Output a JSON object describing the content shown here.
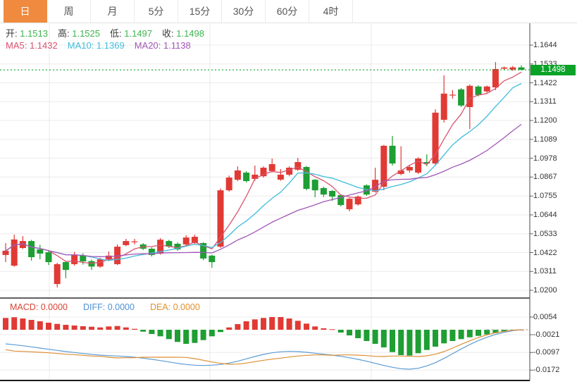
{
  "toolbar": {
    "tabs": [
      {
        "name": "tab-day",
        "label": "日",
        "active": true
      },
      {
        "name": "tab-week",
        "label": "周",
        "active": false
      },
      {
        "name": "tab-month",
        "label": "月",
        "active": false
      },
      {
        "name": "tab-5min",
        "label": "5分",
        "active": false
      },
      {
        "name": "tab-15min",
        "label": "15分",
        "active": false
      },
      {
        "name": "tab-30min",
        "label": "30分",
        "active": false
      },
      {
        "name": "tab-60min",
        "label": "60分",
        "active": false
      },
      {
        "name": "tab-4hour",
        "label": "4时",
        "active": false
      }
    ]
  },
  "legend": {
    "ohlc": [
      {
        "name": "ohlc-open",
        "label": "开:",
        "value": "1.1513"
      },
      {
        "name": "ohlc-high",
        "label": "高:",
        "value": "1.1525"
      },
      {
        "name": "ohlc-low",
        "label": "低:",
        "value": "1.1497"
      },
      {
        "name": "ohlc-close",
        "label": "收:",
        "value": "1.1498"
      }
    ],
    "ma": [
      {
        "name": "ma5-legend",
        "label": "MA5:",
        "value": "1.1432",
        "color": "#d9536f"
      },
      {
        "name": "ma10-legend",
        "label": "MA10:",
        "value": "1.1369",
        "color": "#3fbcdc"
      },
      {
        "name": "ma20-legend",
        "label": "MA20:",
        "value": "1.1138",
        "color": "#a257b8"
      }
    ]
  },
  "price_axis": {
    "tick_labels": [
      "1.1644",
      "1.1533",
      "1.1422",
      "1.1311",
      "1.1200",
      "1.1089",
      "1.0978",
      "1.0867",
      "1.0755",
      "1.0644",
      "1.0533",
      "1.0422",
      "1.0311",
      "1.0200"
    ],
    "current_price": "1.1498"
  },
  "macd_panel": {
    "legend": [
      {
        "name": "macd-value",
        "label": "MACD:",
        "value": "0.0000",
        "color": "#d94436"
      },
      {
        "name": "diff-value",
        "label": "DIFF:",
        "value": "0.0000",
        "color": "#4f93d6"
      },
      {
        "name": "dea-value",
        "label": "DEA:",
        "value": "0.0000",
        "color": "#e2902e"
      }
    ],
    "tick_labels": [
      "0.0054",
      "-0.0021",
      "-0.0097",
      "-0.0172"
    ]
  },
  "colors": {
    "up": "#e13a34",
    "down": "#1e9e33",
    "badge": "#0ba228",
    "dotted_price_line": "#0ca32e",
    "ma5": "#d9536f",
    "ma10": "#3fbcdc",
    "ma20": "#a257b8",
    "diff_line": "#5b9bd5",
    "dea_line": "#dd8f33",
    "tab_active_bg": "#f08a3e",
    "ohlc_value": "#3eb44e",
    "grid": "#ececec",
    "vgrid": "#e8e8e8",
    "axis_line": "#444",
    "divider": "#2b2b2b"
  },
  "chart_data": [
    {
      "type": "candlestick",
      "note": "red = up (close>open), green = down; ohlc arrays are [open,high,low,close]",
      "y_axis_ticks": [
        1.1644,
        1.1533,
        1.1422,
        1.1311,
        1.12,
        1.1089,
        1.0978,
        1.0867,
        1.0755,
        1.0644,
        1.0533,
        1.0422,
        1.0311,
        1.02
      ],
      "current_price": 1.1498,
      "overlays": [
        {
          "name": "MA5",
          "period": 5,
          "last_value": 1.1432
        },
        {
          "name": "MA10",
          "period": 10,
          "last_value": 1.1369
        },
        {
          "name": "MA20",
          "period": 20,
          "last_value": 1.1138
        }
      ],
      "candles": [
        [
          1.0408,
          1.0478,
          1.0366,
          1.0433
        ],
        [
          1.0345,
          1.0528,
          1.0338,
          1.0499
        ],
        [
          1.0449,
          1.0519,
          1.0443,
          1.049
        ],
        [
          1.049,
          1.0497,
          1.0374,
          1.0395
        ],
        [
          1.0441,
          1.0468,
          1.0383,
          1.0416
        ],
        [
          1.0424,
          1.043,
          1.0349,
          1.0366
        ],
        [
          1.0237,
          1.0362,
          1.0217,
          1.0354
        ],
        [
          1.0366,
          1.0372,
          1.0271,
          1.032
        ],
        [
          1.0354,
          1.0426,
          1.0345,
          1.041
        ],
        [
          1.0405,
          1.0418,
          1.0351,
          1.037
        ],
        [
          1.0372,
          1.0381,
          1.032,
          1.034
        ],
        [
          1.034,
          1.0391,
          1.0333,
          1.0382
        ],
        [
          1.0383,
          1.0429,
          1.0372,
          1.0404
        ],
        [
          1.0354,
          1.047,
          1.0349,
          1.0457
        ],
        [
          1.0466,
          1.0503,
          1.046,
          1.049
        ],
        [
          1.0486,
          1.0503,
          1.047,
          1.0488
        ],
        [
          1.047,
          1.0478,
          1.0437,
          1.0445
        ],
        [
          1.0445,
          1.0453,
          1.0399,
          1.0408
        ],
        [
          1.0416,
          1.0507,
          1.041,
          1.0498
        ],
        [
          1.049,
          1.0497,
          1.0449,
          1.0457
        ],
        [
          1.0474,
          1.0482,
          1.0433,
          1.0441
        ],
        [
          1.047,
          1.0524,
          1.0462,
          1.0511
        ],
        [
          1.0478,
          1.0528,
          1.0472,
          1.0515
        ],
        [
          1.0478,
          1.0484,
          1.0377,
          1.0387
        ],
        [
          1.0404,
          1.041,
          1.0333,
          1.0366
        ],
        [
          1.0457,
          1.0799,
          1.045,
          1.0789
        ],
        [
          1.0789,
          1.0876,
          1.0781,
          1.0864
        ],
        [
          1.0851,
          1.093,
          1.0843,
          1.0906
        ],
        [
          1.0893,
          1.0901,
          1.0835,
          1.0843
        ],
        [
          1.0856,
          1.0935,
          1.0845,
          1.0881
        ],
        [
          1.0872,
          1.093,
          1.0864,
          1.0922
        ],
        [
          1.0902,
          1.0976,
          1.0895,
          1.0943
        ],
        [
          1.0852,
          1.0914,
          1.0845,
          1.0881
        ],
        [
          1.0881,
          1.093,
          1.0872,
          1.0922
        ],
        [
          1.091,
          1.098,
          1.0903,
          1.0955
        ],
        [
          1.0926,
          1.0932,
          1.0789,
          1.0797
        ],
        [
          1.0851,
          1.0856,
          1.0748,
          1.0789
        ],
        [
          1.0802,
          1.081,
          1.075,
          1.0764
        ],
        [
          1.0785,
          1.0791,
          1.0727,
          1.0752
        ],
        [
          1.076,
          1.0766,
          1.0694,
          1.0702
        ],
        [
          1.0677,
          1.0745,
          1.0665,
          1.0739
        ],
        [
          1.0706,
          1.0758,
          1.0698,
          1.0752
        ],
        [
          1.0818,
          1.0824,
          1.0756,
          1.0764
        ],
        [
          1.0781,
          1.0922,
          1.0775,
          1.0851
        ],
        [
          1.081,
          1.1056,
          1.0789,
          1.1051
        ],
        [
          1.1051,
          1.1109,
          1.0935,
          1.0947
        ],
        [
          1.0885,
          1.1048,
          1.0878,
          1.0906
        ],
        [
          1.0906,
          1.0935,
          1.0893,
          1.0926
        ],
        [
          1.0893,
          1.0984,
          1.0885,
          1.0976
        ],
        [
          1.0955,
          1.1,
          1.093,
          1.0947
        ],
        [
          1.0947,
          1.1266,
          1.094,
          1.1246
        ],
        [
          1.1204,
          1.1466,
          1.1188,
          1.1358
        ],
        [
          1.135,
          1.1379,
          1.1329,
          1.1352
        ],
        [
          1.1383,
          1.1391,
          1.1279,
          1.1288
        ],
        [
          1.1279,
          1.1412,
          1.115,
          1.1404
        ],
        [
          1.14,
          1.1408,
          1.1342,
          1.135
        ],
        [
          1.1371,
          1.1406,
          1.1363,
          1.14
        ],
        [
          1.1395,
          1.1544,
          1.1379,
          1.1503
        ],
        [
          1.1505,
          1.1518,
          1.1496,
          1.1512
        ],
        [
          1.15,
          1.1521,
          1.1492,
          1.1513
        ],
        [
          1.1513,
          1.1525,
          1.1497,
          1.1498
        ]
      ]
    },
    {
      "type": "bar",
      "name": "MACD",
      "y_axis_ticks": [
        0.0054,
        -0.0021,
        -0.0097,
        -0.0172
      ],
      "histogram": [
        0.005,
        0.0053,
        0.0048,
        0.0042,
        0.0036,
        0.003,
        0.0025,
        0.0021,
        0.0018,
        0.0015,
        0.0013,
        0.001,
        0.0014,
        0.0016,
        0.001,
        0.0004,
        -0.0008,
        -0.0018,
        -0.0028,
        -0.004,
        -0.0052,
        -0.006,
        -0.0056,
        -0.0044,
        -0.0028,
        -0.001,
        0.001,
        0.0024,
        0.0036,
        0.0044,
        0.005,
        0.0054,
        0.0054,
        0.0048,
        0.0038,
        0.0026,
        0.0014,
        0.0006,
        0.0002,
        -0.0012,
        -0.0024,
        -0.0036,
        -0.0048,
        -0.006,
        -0.0075,
        -0.0095,
        -0.0108,
        -0.011,
        -0.01,
        -0.0086,
        -0.0072,
        -0.0058,
        -0.0048,
        -0.004,
        -0.0032,
        -0.0026,
        -0.002,
        -0.0014,
        -0.0008,
        -0.0003,
        0.0
      ],
      "diff": [
        -0.006,
        -0.0064,
        -0.0068,
        -0.0073,
        -0.0078,
        -0.0083,
        -0.0088,
        -0.0093,
        -0.0097,
        -0.0101,
        -0.0105,
        -0.0108,
        -0.011,
        -0.0112,
        -0.0114,
        -0.0117,
        -0.0121,
        -0.0126,
        -0.0131,
        -0.0137,
        -0.0143,
        -0.0148,
        -0.0151,
        -0.0152,
        -0.0151,
        -0.0148,
        -0.0142,
        -0.0134,
        -0.0124,
        -0.0114,
        -0.0105,
        -0.0098,
        -0.0094,
        -0.0092,
        -0.0093,
        -0.0096,
        -0.01,
        -0.0104,
        -0.0108,
        -0.0113,
        -0.0119,
        -0.0126,
        -0.0134,
        -0.0143,
        -0.0152,
        -0.016,
        -0.0166,
        -0.0168,
        -0.0164,
        -0.0154,
        -0.014,
        -0.0122,
        -0.0102,
        -0.0082,
        -0.0063,
        -0.0046,
        -0.0032,
        -0.002,
        -0.0011,
        -0.0004,
        0.0
      ],
      "dea": [
        -0.0085,
        -0.0091,
        -0.0092,
        -0.0094,
        -0.0096,
        -0.0098,
        -0.0101,
        -0.0104,
        -0.0106,
        -0.0109,
        -0.0112,
        -0.0113,
        -0.0117,
        -0.012,
        -0.0119,
        -0.0119,
        -0.0117,
        -0.0117,
        -0.0117,
        -0.0117,
        -0.0117,
        -0.0118,
        -0.0123,
        -0.013,
        -0.0137,
        -0.0143,
        -0.0147,
        -0.0146,
        -0.0142,
        -0.0136,
        -0.013,
        -0.0125,
        -0.0121,
        -0.0116,
        -0.0112,
        -0.0109,
        -0.0107,
        -0.0107,
        -0.0109,
        -0.0107,
        -0.0107,
        -0.0108,
        -0.011,
        -0.0113,
        -0.0114,
        -0.0112,
        -0.0112,
        -0.0113,
        -0.0114,
        -0.0111,
        -0.0104,
        -0.0093,
        -0.0078,
        -0.0062,
        -0.0047,
        -0.0033,
        -0.0022,
        -0.0013,
        -0.0007,
        -0.0002,
        0.0
      ]
    }
  ]
}
